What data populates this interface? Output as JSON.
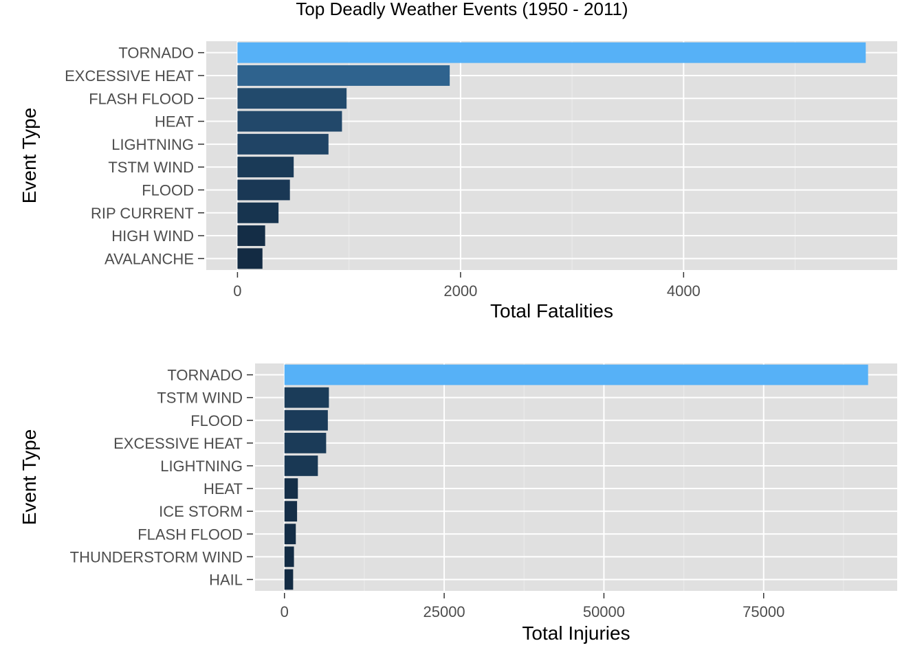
{
  "title": "Top Deadly Weather Events (1950 - 2011)",
  "colors": {
    "panel_bg": "#e0e0e0",
    "grid_major": "#ffffff",
    "grid_minor": "#ececec",
    "bar_low": "#132b43",
    "bar_high": "#56b1f7",
    "tick_text": "#4d4d4d"
  },
  "chart_data": [
    {
      "type": "bar",
      "orientation": "horizontal",
      "categories": [
        "TORNADO",
        "EXCESSIVE HEAT",
        "FLASH FLOOD",
        "HEAT",
        "LIGHTNING",
        "TSTM WIND",
        "FLOOD",
        "RIP CURRENT",
        "HIGH WIND",
        "AVALANCHE"
      ],
      "values": [
        5633,
        1903,
        978,
        937,
        816,
        504,
        470,
        368,
        248,
        224
      ],
      "xlabel": "Total Fatalities",
      "ylabel": "Event Type",
      "xlim": [
        -280,
        5915
      ],
      "xticks": [
        0,
        2000,
        4000
      ],
      "xtick_labels": [
        "0",
        "2000",
        "4000"
      ],
      "minor_ticks": [
        1000,
        3000,
        5000
      ],
      "fill_scale": "continuous gradient, dark navy (low) to light blue (high)",
      "grid": true,
      "legend": "none"
    },
    {
      "type": "bar",
      "orientation": "horizontal",
      "categories": [
        "TORNADO",
        "TSTM WIND",
        "FLOOD",
        "EXCESSIVE HEAT",
        "LIGHTNING",
        "HEAT",
        "ICE STORM",
        "FLASH FLOOD",
        "THUNDERSTORM WIND",
        "HAIL"
      ],
      "values": [
        91346,
        6957,
        6789,
        6525,
        5230,
        2100,
        1975,
        1777,
        1488,
        1361
      ],
      "xlabel": "Total Injuries",
      "ylabel": "Event Type",
      "xlim": [
        -4600,
        95900
      ],
      "xticks": [
        0,
        25000,
        50000,
        75000
      ],
      "xtick_labels": [
        "0",
        "25000",
        "50000",
        "75000"
      ],
      "minor_ticks": [
        12500,
        37500,
        62500,
        87500
      ],
      "fill_scale": "continuous gradient, dark navy (low) to light blue (high)",
      "grid": true,
      "legend": "none"
    }
  ]
}
